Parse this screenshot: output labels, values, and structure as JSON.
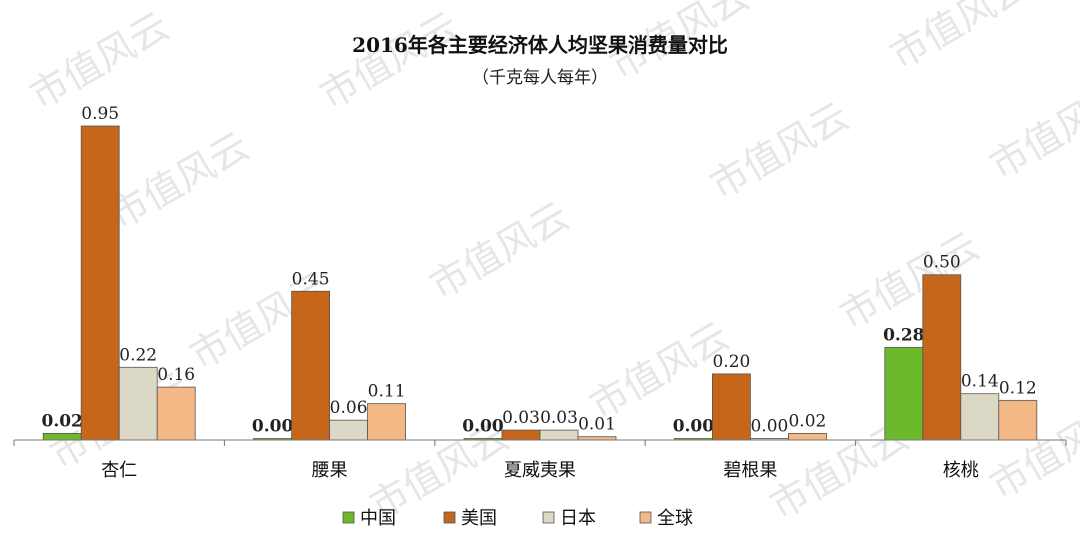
{
  "chart_data": {
    "type": "bar",
    "title": "2016年各主要经济体人均坚果消费量对比",
    "subtitle": "（千克每人每年）",
    "categories": [
      "杏仁",
      "腰果",
      "夏威夷果",
      "碧根果",
      "核桃"
    ],
    "series": [
      {
        "name": "中国",
        "color": "#6cba2c",
        "values": [
          0.02,
          0.0,
          0.0,
          0.0,
          0.28
        ],
        "labels": [
          "0.02",
          "0.00",
          "0.00",
          "0.00",
          "0.28"
        ],
        "bold_labels": true
      },
      {
        "name": "美国",
        "color": "#c5661a",
        "values": [
          0.95,
          0.45,
          0.03,
          0.2,
          0.5
        ],
        "labels": [
          "0.95",
          "0.45",
          "0.03",
          "0.20",
          "0.50"
        ],
        "bold_labels": false
      },
      {
        "name": "日本",
        "color": "#dcd8c6",
        "values": [
          0.22,
          0.06,
          0.03,
          0.0,
          0.14
        ],
        "labels": [
          "0.22",
          "0.06",
          "0.03",
          "0.00",
          "0.14"
        ],
        "bold_labels": false
      },
      {
        "name": "全球",
        "color": "#f3b886",
        "values": [
          0.16,
          0.11,
          0.01,
          0.02,
          0.12
        ],
        "labels": [
          "0.16",
          "0.11",
          "0.01",
          "0.02",
          "0.12"
        ],
        "bold_labels": false
      }
    ],
    "ylim": [
      0,
      1.0
    ],
    "grid": false,
    "legend_position": "bottom",
    "xlabel": "",
    "ylabel": ""
  },
  "watermark": "市值风云"
}
